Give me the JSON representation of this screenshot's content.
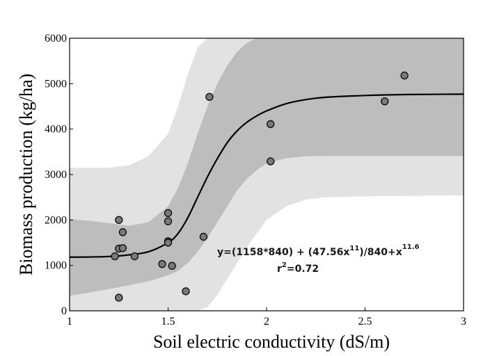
{
  "chart_data": {
    "type": "scatter",
    "xlabel": "Soil electric conductivity (dS/m)",
    "ylabel": "Biomass production (kg/ha)",
    "xlim": [
      1,
      3
    ],
    "ylim": [
      0,
      6000
    ],
    "xticks": [
      "1",
      "1.5",
      "2",
      "2.5",
      "3"
    ],
    "yticks": [
      "0",
      "1000",
      "2000",
      "3000",
      "4000",
      "5000",
      "6000"
    ],
    "grid": false,
    "points": [
      {
        "x": 1.23,
        "y": 1200
      },
      {
        "x": 1.25,
        "y": 2000
      },
      {
        "x": 1.25,
        "y": 1370
      },
      {
        "x": 1.25,
        "y": 290
      },
      {
        "x": 1.27,
        "y": 1730
      },
      {
        "x": 1.27,
        "y": 1380
      },
      {
        "x": 1.33,
        "y": 1200
      },
      {
        "x": 1.47,
        "y": 1030
      },
      {
        "x": 1.5,
        "y": 2150
      },
      {
        "x": 1.5,
        "y": 1970
      },
      {
        "x": 1.5,
        "y": 1530
      },
      {
        "x": 1.5,
        "y": 1500
      },
      {
        "x": 1.52,
        "y": 990
      },
      {
        "x": 1.59,
        "y": 430
      },
      {
        "x": 1.68,
        "y": 1630
      },
      {
        "x": 1.71,
        "y": 4710
      },
      {
        "x": 2.02,
        "y": 4110
      },
      {
        "x": 2.02,
        "y": 3290
      },
      {
        "x": 2.6,
        "y": 4610
      },
      {
        "x": 2.7,
        "y": 5180
      }
    ],
    "fit": {
      "equation_prefix": "y=(1158*840) + (47.56x",
      "equation_exp1": "11",
      "equation_mid": ")/840+x",
      "equation_exp2": "11.6",
      "r2_label": "r",
      "r2_exp": "2",
      "r2_value": "=0.72",
      "x": [
        1.0,
        1.1,
        1.2,
        1.3,
        1.4,
        1.5,
        1.55,
        1.6,
        1.65,
        1.7,
        1.75,
        1.8,
        1.85,
        1.9,
        1.95,
        2.0,
        2.1,
        2.2,
        2.3,
        2.5,
        2.7,
        3.0
      ],
      "y": [
        1180,
        1185,
        1195,
        1230,
        1300,
        1500,
        1700,
        2050,
        2500,
        2950,
        3350,
        3700,
        3960,
        4150,
        4290,
        4400,
        4560,
        4650,
        4700,
        4740,
        4760,
        4770
      ],
      "inner_upper": [
        2020,
        1980,
        1930,
        1870,
        1950,
        2300,
        2700,
        3250,
        3900,
        4500,
        5000,
        5400,
        5700,
        5900,
        6000,
        6000,
        6000,
        6000,
        6000,
        6000,
        6000,
        6000
      ],
      "inner_lower": [
        330,
        400,
        480,
        560,
        650,
        780,
        880,
        1050,
        1300,
        1600,
        1950,
        2300,
        2650,
        2900,
        3100,
        3250,
        3360,
        3400,
        3410,
        3410,
        3410,
        3410
      ],
      "outer_upper": [
        3150,
        3150,
        3150,
        3200,
        3400,
        3900,
        4500,
        5200,
        5800,
        6000,
        6000,
        6000,
        6000,
        6000,
        6000,
        6000,
        6000,
        6000,
        6000,
        6000,
        6000,
        6000
      ],
      "outer_lower": [
        0,
        0,
        0,
        0,
        0,
        0,
        0,
        0,
        0,
        80,
        350,
        700,
        1050,
        1400,
        1700,
        2000,
        2300,
        2450,
        2500,
        2520,
        2530,
        2540
      ]
    },
    "colors": {
      "outer_band": "#e2e2e2",
      "inner_band": "#bdbdbd",
      "fit_line": "#000000",
      "point_fill": "#7a7a7a",
      "point_stroke": "#111111"
    }
  }
}
